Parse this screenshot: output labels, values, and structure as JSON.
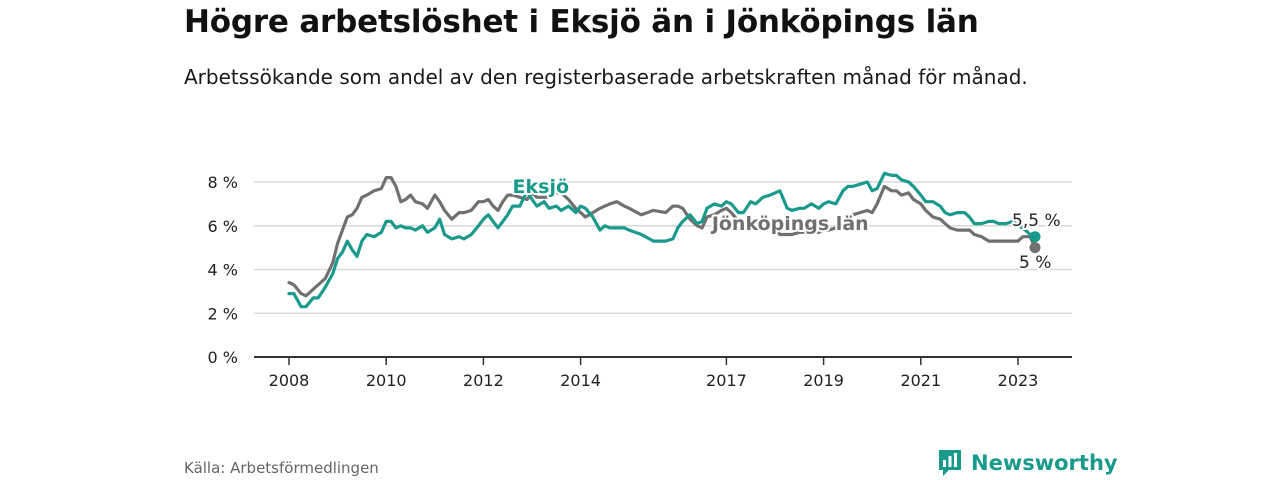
{
  "title": "Högre arbetslöshet i Eksjö än i Jönköpings län",
  "subtitle": "Arbetssökande som andel av den registerbaserade arbetskraften månad för månad.",
  "source": "Källa: Arbetsförmedlingen",
  "brand": "Newsworthy",
  "colors": {
    "eksjo": "#1a9a8c",
    "jonkoping": "#707070",
    "axis": "#333333",
    "grid": "#d9d9d9",
    "brand": "#1a9a8c"
  },
  "icons": {
    "brand": "bar-chart-icon"
  },
  "chart_data": {
    "type": "line",
    "title": "Högre arbetslöshet i Eksjö än i Jönköpings län",
    "xlabel": "",
    "ylabel": "",
    "xlim": [
      2008,
      2023.9
    ],
    "ylim": [
      0,
      8
    ],
    "y_ticks": [
      0,
      2,
      4,
      6,
      8
    ],
    "y_tick_labels": [
      "0 %",
      "2 %",
      "4 %",
      "6 %",
      "8 %"
    ],
    "x_ticks": [
      2008,
      2010,
      2012,
      2014,
      2017,
      2019,
      2021,
      2023
    ],
    "x_tick_labels": [
      "2008",
      "2010",
      "2012",
      "2014",
      "2017",
      "2019",
      "2021",
      "2023"
    ],
    "grid": true,
    "series": [
      {
        "name": "Eksjö",
        "label": "Eksjö",
        "end_label": "5,5 %",
        "x": [
          2008,
          2008.1,
          2008.25,
          2008.35,
          2008.5,
          2008.6,
          2008.75,
          2008.9,
          2009,
          2009.1,
          2009.2,
          2009.3,
          2009.4,
          2009.5,
          2009.6,
          2009.75,
          2009.9,
          2010,
          2010.1,
          2010.2,
          2010.3,
          2010.4,
          2010.5,
          2010.6,
          2010.75,
          2010.85,
          2011,
          2011.1,
          2011.2,
          2011.35,
          2011.5,
          2011.6,
          2011.75,
          2011.9,
          2012,
          2012.1,
          2012.2,
          2012.3,
          2012.4,
          2012.5,
          2012.6,
          2012.75,
          2012.9,
          2013,
          2013.1,
          2013.25,
          2013.35,
          2013.5,
          2013.6,
          2013.75,
          2013.9,
          2014,
          2014.1,
          2014.25,
          2014.4,
          2014.5,
          2014.6,
          2014.75,
          2014.9,
          2015,
          2015.25,
          2015.5,
          2015.75,
          2015.9,
          2016,
          2016.1,
          2016.25,
          2016.4,
          2016.5,
          2016.6,
          2016.75,
          2016.9,
          2017,
          2017.1,
          2017.25,
          2017.35,
          2017.5,
          2017.6,
          2017.75,
          2017.9,
          2018,
          2018.1,
          2018.25,
          2018.35,
          2018.5,
          2018.6,
          2018.75,
          2018.9,
          2019,
          2019.1,
          2019.25,
          2019.4,
          2019.5,
          2019.6,
          2019.75,
          2019.9,
          2020,
          2020.1,
          2020.25,
          2020.4,
          2020.5,
          2020.6,
          2020.75,
          2020.85,
          2021,
          2021.1,
          2021.25,
          2021.4,
          2021.5,
          2021.6,
          2021.75,
          2021.9,
          2022,
          2022.1,
          2022.25,
          2022.4,
          2022.5,
          2022.6,
          2022.75,
          2022.9,
          2023,
          2023.1,
          2023.25,
          2023.35
        ],
        "values": [
          2.9,
          2.9,
          2.3,
          2.3,
          2.7,
          2.7,
          3.2,
          3.8,
          4.5,
          4.8,
          5.3,
          4.9,
          4.6,
          5.3,
          5.6,
          5.5,
          5.7,
          6.2,
          6.2,
          5.9,
          6.0,
          5.9,
          5.9,
          5.8,
          6.0,
          5.7,
          5.9,
          6.3,
          5.6,
          5.4,
          5.5,
          5.4,
          5.6,
          6.0,
          6.3,
          6.5,
          6.2,
          5.9,
          6.2,
          6.5,
          6.9,
          6.9,
          7.6,
          7.2,
          6.9,
          7.1,
          6.8,
          6.9,
          6.7,
          6.9,
          6.6,
          6.9,
          6.8,
          6.4,
          5.8,
          6.0,
          5.9,
          5.9,
          5.9,
          5.8,
          5.6,
          5.3,
          5.3,
          5.4,
          5.9,
          6.2,
          6.5,
          6.1,
          6.2,
          6.8,
          7.0,
          6.9,
          7.1,
          7.0,
          6.6,
          6.6,
          7.1,
          7.0,
          7.3,
          7.4,
          7.5,
          7.6,
          6.8,
          6.7,
          6.8,
          6.8,
          7.0,
          6.8,
          7.0,
          7.1,
          7.0,
          7.6,
          7.8,
          7.8,
          7.9,
          8.0,
          7.6,
          7.7,
          8.4,
          8.3,
          8.3,
          8.1,
          8.0,
          7.8,
          7.4,
          7.1,
          7.1,
          6.9,
          6.6,
          6.5,
          6.6,
          6.6,
          6.4,
          6.1,
          6.1,
          6.2,
          6.2,
          6.1,
          6.1,
          6.2,
          6.0,
          5.9,
          5.6,
          5.5
        ]
      },
      {
        "name": "Jönköpings län",
        "label": "Jönköpings län",
        "end_label": "5 %",
        "x": [
          2008,
          2008.1,
          2008.25,
          2008.35,
          2008.5,
          2008.6,
          2008.75,
          2008.9,
          2009,
          2009.1,
          2009.2,
          2009.3,
          2009.4,
          2009.5,
          2009.6,
          2009.75,
          2009.9,
          2010,
          2010.1,
          2010.2,
          2010.3,
          2010.4,
          2010.5,
          2010.6,
          2010.75,
          2010.85,
          2011,
          2011.1,
          2011.2,
          2011.35,
          2011.5,
          2011.6,
          2011.75,
          2011.9,
          2012,
          2012.1,
          2012.2,
          2012.3,
          2012.4,
          2012.5,
          2012.6,
          2012.75,
          2012.9,
          2013,
          2013.1,
          2013.25,
          2013.35,
          2013.5,
          2013.6,
          2013.75,
          2013.9,
          2014,
          2014.1,
          2014.25,
          2014.4,
          2014.5,
          2014.6,
          2014.75,
          2014.9,
          2015,
          2015.25,
          2015.5,
          2015.75,
          2015.9,
          2016,
          2016.1,
          2016.25,
          2016.4,
          2016.5,
          2016.6,
          2016.75,
          2016.9,
          2017,
          2017.1,
          2017.25,
          2017.35,
          2017.5,
          2017.6,
          2017.75,
          2017.9,
          2018,
          2018.1,
          2018.25,
          2018.35,
          2018.5,
          2018.6,
          2018.75,
          2018.9,
          2019,
          2019.1,
          2019.25,
          2019.4,
          2019.5,
          2019.6,
          2019.75,
          2019.9,
          2020,
          2020.1,
          2020.25,
          2020.4,
          2020.5,
          2020.6,
          2020.75,
          2020.85,
          2021,
          2021.1,
          2021.25,
          2021.4,
          2021.5,
          2021.6,
          2021.75,
          2021.9,
          2022,
          2022.1,
          2022.25,
          2022.4,
          2022.5,
          2022.6,
          2022.75,
          2022.9,
          2023,
          2023.1,
          2023.25,
          2023.35
        ],
        "values": [
          3.4,
          3.3,
          2.9,
          2.8,
          3.1,
          3.3,
          3.6,
          4.3,
          5.2,
          5.8,
          6.4,
          6.5,
          6.8,
          7.3,
          7.4,
          7.6,
          7.7,
          8.2,
          8.2,
          7.8,
          7.1,
          7.2,
          7.4,
          7.1,
          7.0,
          6.8,
          7.4,
          7.1,
          6.7,
          6.3,
          6.6,
          6.6,
          6.7,
          7.1,
          7.1,
          7.2,
          6.9,
          6.7,
          7.1,
          7.4,
          7.4,
          7.3,
          7.2,
          7.5,
          7.3,
          7.3,
          7.3,
          7.5,
          7.5,
          7.2,
          6.8,
          6.6,
          6.4,
          6.6,
          6.8,
          6.9,
          7.0,
          7.1,
          6.9,
          6.8,
          6.5,
          6.7,
          6.6,
          6.9,
          6.9,
          6.8,
          6.3,
          6.0,
          5.9,
          6.4,
          6.5,
          6.7,
          6.8,
          6.6,
          6.2,
          6.1,
          6.0,
          5.9,
          6.0,
          6.0,
          5.9,
          5.6,
          5.6,
          5.6,
          5.7,
          5.7,
          5.7,
          5.7,
          5.8,
          5.8,
          5.9,
          6.2,
          6.3,
          6.5,
          6.6,
          6.7,
          6.6,
          7.0,
          7.8,
          7.6,
          7.6,
          7.4,
          7.5,
          7.2,
          7.0,
          6.7,
          6.4,
          6.3,
          6.1,
          5.9,
          5.8,
          5.8,
          5.8,
          5.6,
          5.5,
          5.3,
          5.3,
          5.3,
          5.3,
          5.3,
          5.3,
          5.5,
          5.5,
          5.0
        ]
      }
    ]
  }
}
